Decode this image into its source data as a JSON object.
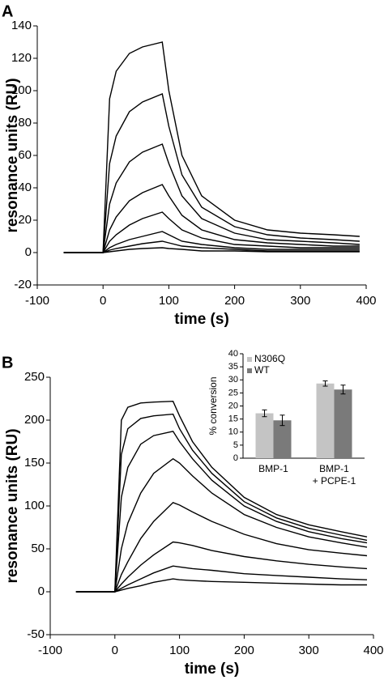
{
  "chart_data": [
    {
      "type": "line",
      "panel_label": "A",
      "xlabel": "time (s)",
      "ylabel": "resonance units (RU)",
      "xlim": [
        -100,
        400
      ],
      "xticks": [
        -100,
        0,
        100,
        200,
        300,
        400
      ],
      "ylim": [
        -20,
        140
      ],
      "yticks": [
        -20,
        0,
        20,
        40,
        60,
        80,
        100,
        120,
        140
      ],
      "x": [
        -60,
        -30,
        0,
        10,
        20,
        40,
        60,
        90,
        100,
        120,
        150,
        200,
        250,
        300,
        350,
        390
      ],
      "series": [
        {
          "color": "#000000",
          "values": [
            0,
            0,
            0,
            95,
            112,
            123,
            127,
            130,
            100,
            60,
            35,
            20,
            14,
            12,
            11,
            10
          ]
        },
        {
          "color": "#000000",
          "values": [
            0,
            0,
            0,
            55,
            72,
            87,
            93,
            98,
            78,
            48,
            28,
            16,
            11,
            9,
            8,
            7
          ]
        },
        {
          "color": "#000000",
          "values": [
            0,
            0,
            0,
            30,
            43,
            56,
            62,
            67,
            55,
            35,
            21,
            12,
            8,
            7,
            6,
            5
          ]
        },
        {
          "color": "#000000",
          "values": [
            0,
            0,
            0,
            14,
            22,
            32,
            37,
            42,
            35,
            23,
            14,
            8,
            6,
            5,
            4,
            4
          ]
        },
        {
          "color": "#000000",
          "values": [
            0,
            0,
            0,
            7,
            11,
            17,
            21,
            25,
            21,
            14,
            9,
            5,
            4,
            3,
            3,
            3
          ]
        },
        {
          "color": "#000000",
          "values": [
            0,
            0,
            0,
            3,
            5,
            8,
            10,
            13,
            11,
            7,
            5,
            3,
            2,
            2,
            2,
            2
          ]
        },
        {
          "color": "#000000",
          "values": [
            0,
            0,
            0,
            1.5,
            2.5,
            4,
            5.5,
            7,
            6,
            4,
            3,
            2,
            1,
            1,
            1,
            1
          ]
        },
        {
          "color": "#000000",
          "values": [
            0,
            0,
            0,
            0.5,
            1,
            2,
            2.5,
            3,
            2.5,
            2,
            1,
            1,
            0.5,
            0.5,
            0.5,
            0.5
          ]
        }
      ]
    },
    {
      "type": "line",
      "panel_label": "B",
      "xlabel": "time (s)",
      "ylabel": "resonance units (RU)",
      "xlim": [
        -100,
        400
      ],
      "xticks": [
        -100,
        0,
        100,
        200,
        300,
        400
      ],
      "ylim": [
        -50,
        250
      ],
      "yticks": [
        -50,
        0,
        50,
        100,
        150,
        200,
        250
      ],
      "x": [
        -60,
        -30,
        0,
        10,
        20,
        40,
        60,
        90,
        100,
        120,
        150,
        200,
        250,
        300,
        350,
        390
      ],
      "series": [
        {
          "color": "#000000",
          "values": [
            0,
            0,
            0,
            200,
            215,
            220,
            221,
            222,
            205,
            175,
            145,
            110,
            90,
            78,
            70,
            64
          ]
        },
        {
          "color": "#000000",
          "values": [
            0,
            0,
            0,
            160,
            190,
            202,
            205,
            207,
            190,
            165,
            138,
            105,
            86,
            74,
            66,
            60
          ]
        },
        {
          "color": "#000000",
          "values": [
            0,
            0,
            0,
            110,
            145,
            172,
            182,
            187,
            175,
            155,
            130,
            100,
            82,
            70,
            62,
            57
          ]
        },
        {
          "color": "#000000",
          "values": [
            0,
            0,
            0,
            50,
            80,
            115,
            138,
            155,
            150,
            135,
            115,
            90,
            75,
            64,
            57,
            52
          ]
        },
        {
          "color": "#000000",
          "values": [
            0,
            0,
            0,
            20,
            35,
            62,
            82,
            104,
            101,
            93,
            82,
            67,
            56,
            49,
            45,
            42
          ]
        },
        {
          "color": "#000000",
          "values": [
            0,
            0,
            0,
            9,
            17,
            31,
            43,
            58,
            57,
            54,
            48,
            41,
            36,
            32,
            29,
            27
          ]
        },
        {
          "color": "#000000",
          "values": [
            0,
            0,
            0,
            4,
            8,
            15,
            22,
            30,
            29,
            27,
            25,
            21,
            19,
            17,
            15,
            14
          ]
        },
        {
          "color": "#000000",
          "values": [
            0,
            0,
            0,
            2,
            4,
            7,
            11,
            15,
            14,
            13,
            12,
            11,
            10,
            9,
            8,
            8
          ]
        }
      ]
    },
    {
      "type": "bar",
      "ylabel": "% conversion",
      "ylim": [
        0,
        40
      ],
      "yticks": [
        0,
        5,
        10,
        15,
        20,
        25,
        30,
        35,
        40
      ],
      "categories": [
        [
          "BMP-1"
        ],
        [
          "BMP-1",
          "+ PCPE-1"
        ]
      ],
      "series": [
        {
          "name": "N306Q",
          "color": "#c4c4c4",
          "values": [
            17.2,
            28.6
          ],
          "errors": [
            1.3,
            1.0
          ]
        },
        {
          "name": "WT",
          "color": "#7a7a7a",
          "values": [
            14.5,
            26.3
          ],
          "errors": [
            2.0,
            1.7
          ]
        }
      ]
    }
  ]
}
